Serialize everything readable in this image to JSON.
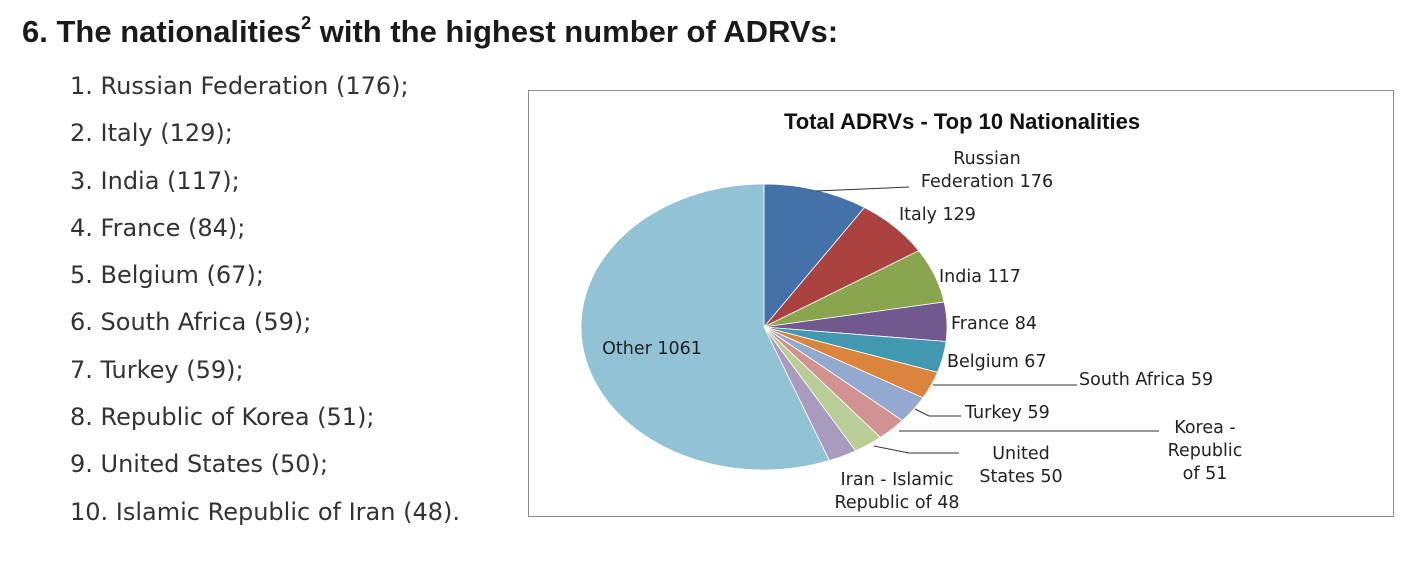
{
  "heading": {
    "number": "6.",
    "text_before": "The nationalities",
    "sup": "2",
    "text_after": " with the highest number of ADRVs:"
  },
  "list": [
    "1. Russian Federation (176);",
    "2. Italy (129);",
    "3. India (117);",
    "4. France (84);",
    "5. Belgium (67);",
    "6. South Africa (59);",
    "7. Turkey (59);",
    "8. Republic of Korea (51);",
    "9. United States (50);",
    "10. Islamic Republic of Iran (48)."
  ],
  "chart_data": {
    "type": "pie",
    "title": "Total ADRVs - Top 10 Nationalities",
    "start": "12 o'clock",
    "direction": "clockwise",
    "slices": [
      {
        "name": "Russian Federation",
        "value": 176,
        "color": "#4472a8",
        "label_lines": [
          "Russian",
          "Federation 176"
        ]
      },
      {
        "name": "Italy",
        "value": 129,
        "color": "#aa4240",
        "label_lines": [
          "Italy 129"
        ]
      },
      {
        "name": "India",
        "value": 117,
        "color": "#89a54e",
        "label_lines": [
          "India 117"
        ]
      },
      {
        "name": "France",
        "value": 84,
        "color": "#71588f",
        "label_lines": [
          "France 84"
        ]
      },
      {
        "name": "Belgium",
        "value": 67,
        "color": "#4198af",
        "label_lines": [
          "Belgium 67"
        ]
      },
      {
        "name": "South Africa",
        "value": 59,
        "color": "#db843d",
        "label_lines": [
          "South Africa 59"
        ]
      },
      {
        "name": "Turkey",
        "value": 59,
        "color": "#93a9cf",
        "label_lines": [
          "Turkey 59"
        ]
      },
      {
        "name": "Korea - Republic of",
        "value": 51,
        "color": "#d19392",
        "label_lines": [
          "Korea -",
          "Republic",
          "of 51"
        ]
      },
      {
        "name": "United States",
        "value": 50,
        "color": "#b9cd96",
        "label_lines": [
          "United",
          "States 50"
        ]
      },
      {
        "name": "Iran - Islamic Republic of",
        "value": 48,
        "color": "#a99bbd",
        "label_lines": [
          "Iran - Islamic",
          "Republic of 48"
        ]
      },
      {
        "name": "Other",
        "value": 1061,
        "color": "#92c3d4",
        "label_lines": [
          "Other 1061"
        ]
      }
    ]
  }
}
